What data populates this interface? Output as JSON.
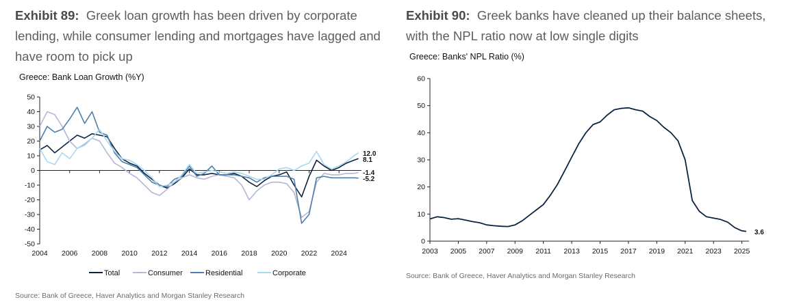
{
  "exhibit89": {
    "number": "Exhibit 89:",
    "title": "Greek loan growth has been driven by corporate lending, while consumer lending and mortgages have lagged and have room to pick up",
    "source": "Source: Bank of Greece, Haver Analytics and Morgan Stanley Research"
  },
  "exhibit90": {
    "number": "Exhibit 90:",
    "title": "Greek banks have cleaned up their balance sheets, with the NPL ratio now at low single digits",
    "source": "Source: Bank of Greece, Haver Analytics and Morgan Stanley Research"
  },
  "colors": {
    "total": "#0c2340",
    "consumer": "#b3b6d6",
    "residential": "#4f7eab",
    "corporate": "#a9d8f0",
    "npl": "#0c2340",
    "axis": "#222222"
  },
  "chart_data": [
    {
      "type": "line",
      "title": "Greece: Bank Loan Growth (%Y)",
      "xlabel": "",
      "ylabel": "",
      "xlim": [
        2004,
        2025.5
      ],
      "ylim": [
        -50,
        50
      ],
      "yticks": [
        -50,
        -40,
        -30,
        -20,
        -10,
        0,
        10,
        20,
        30,
        40,
        50
      ],
      "xticks": [
        2004,
        2006,
        2008,
        2010,
        2012,
        2014,
        2016,
        2018,
        2020,
        2022,
        2024
      ],
      "legend": "bottom",
      "grid": false,
      "series": [
        {
          "name": "Total",
          "color_key": "total",
          "end_label": "8.1",
          "x": [
            2004,
            2004.5,
            2005,
            2005.5,
            2006,
            2006.5,
            2007,
            2007.5,
            2008,
            2008.5,
            2009,
            2009.5,
            2010,
            2010.5,
            2011,
            2011.5,
            2012,
            2012.5,
            2013,
            2013.5,
            2014,
            2014.5,
            2015,
            2015.5,
            2016,
            2016.5,
            2017,
            2017.5,
            2018,
            2018.5,
            2019,
            2019.5,
            2020,
            2020.5,
            2021,
            2021.5,
            2022,
            2022.5,
            2023,
            2023.5,
            2024,
            2024.5,
            2025,
            2025.3
          ],
          "y": [
            14,
            17,
            12,
            16,
            20,
            24,
            22,
            25,
            24,
            23,
            15,
            8,
            5,
            3,
            -2,
            -6,
            -10,
            -12,
            -9,
            -5,
            1,
            -3,
            -3,
            -2,
            -3,
            -3,
            -2,
            -4,
            -8,
            -11,
            -7,
            -4,
            -3,
            -1,
            -10,
            -18,
            -4,
            7,
            3,
            0,
            2,
            5,
            7,
            8.1
          ]
        },
        {
          "name": "Consumer",
          "color_key": "consumer",
          "end_label": "-1.4",
          "x": [
            2004,
            2004.5,
            2005,
            2005.5,
            2006,
            2006.5,
            2007,
            2007.5,
            2008,
            2008.5,
            2009,
            2009.5,
            2010,
            2010.5,
            2011,
            2011.5,
            2012,
            2012.5,
            2013,
            2013.5,
            2014,
            2014.5,
            2015,
            2015.5,
            2016,
            2016.5,
            2017,
            2017.5,
            2018,
            2018.5,
            2019,
            2019.5,
            2020,
            2020.5,
            2021,
            2021.5,
            2022,
            2022.5,
            2023,
            2023.5,
            2024,
            2024.5,
            2025,
            2025.3
          ],
          "y": [
            30,
            40,
            38,
            30,
            20,
            15,
            18,
            22,
            20,
            12,
            5,
            2,
            -2,
            -5,
            -10,
            -15,
            -17,
            -13,
            -8,
            -5,
            -3,
            -5,
            -6,
            -4,
            -3,
            -4,
            -5,
            -10,
            -20,
            -14,
            -10,
            -8,
            -8,
            -9,
            -15,
            -32,
            -28,
            -8,
            -2,
            -3,
            -3,
            -2,
            -2,
            -1.4
          ]
        },
        {
          "name": "Residential",
          "color_key": "residential",
          "end_label": "-5.2",
          "x": [
            2004,
            2004.5,
            2005,
            2005.5,
            2006,
            2006.5,
            2007,
            2007.5,
            2008,
            2008.5,
            2009,
            2009.5,
            2010,
            2010.5,
            2011,
            2011.5,
            2012,
            2012.5,
            2013,
            2013.5,
            2014,
            2014.5,
            2015,
            2015.5,
            2016,
            2016.5,
            2017,
            2017.5,
            2018,
            2018.5,
            2019,
            2019.5,
            2020,
            2020.5,
            2021,
            2021.5,
            2022,
            2022.5,
            2023,
            2023.5,
            2024,
            2024.5,
            2025,
            2025.3
          ],
          "y": [
            20,
            30,
            26,
            28,
            35,
            43,
            32,
            40,
            26,
            24,
            12,
            6,
            4,
            2,
            -3,
            -8,
            -10,
            -11,
            -6,
            -4,
            3,
            -4,
            -2,
            3,
            -3,
            -3,
            -3,
            -4,
            -5,
            -8,
            -5,
            -4,
            -4,
            -4,
            -6,
            -36,
            -30,
            -5,
            -4,
            -5,
            -5,
            -5,
            -5,
            -5.2
          ]
        },
        {
          "name": "Corporate",
          "color_key": "corporate",
          "end_label": "12.0",
          "x": [
            2004,
            2004.5,
            2005,
            2005.5,
            2006,
            2006.5,
            2007,
            2007.5,
            2008,
            2008.5,
            2009,
            2009.5,
            2010,
            2010.5,
            2011,
            2011.5,
            2012,
            2012.5,
            2013,
            2013.5,
            2014,
            2014.5,
            2015,
            2015.5,
            2016,
            2016.5,
            2017,
            2017.5,
            2018,
            2018.5,
            2019,
            2019.5,
            2020,
            2020.5,
            2021,
            2021.5,
            2022,
            2022.5,
            2023,
            2023.5,
            2024,
            2024.5,
            2025,
            2025.3
          ],
          "y": [
            15,
            6,
            4,
            12,
            8,
            15,
            17,
            22,
            28,
            20,
            13,
            8,
            7,
            4,
            0,
            -5,
            -11,
            -10,
            -8,
            -3,
            4,
            -2,
            -1,
            0,
            -1,
            -2,
            -1,
            -2,
            -4,
            -6,
            -6,
            -3,
            1,
            2,
            0,
            3,
            5,
            13,
            4,
            1,
            3,
            6,
            10,
            12.0
          ]
        }
      ]
    },
    {
      "type": "line",
      "title": "Greece: Banks' NPL Ratio (%)",
      "xlabel": "",
      "ylabel": "",
      "xlim": [
        2003,
        2025.5
      ],
      "ylim": [
        0,
        60
      ],
      "yticks": [
        0,
        10,
        20,
        30,
        40,
        50,
        60
      ],
      "xticks": [
        2003,
        2005,
        2007,
        2009,
        2011,
        2013,
        2015,
        2017,
        2019,
        2021,
        2023,
        2025
      ],
      "legend": "none",
      "grid": false,
      "series": [
        {
          "name": "NPL Ratio",
          "color_key": "npl",
          "end_label": "3.6",
          "x": [
            2003,
            2003.5,
            2004,
            2004.5,
            2005,
            2005.5,
            2006,
            2006.5,
            2007,
            2007.5,
            2008,
            2008.5,
            2009,
            2009.5,
            2010,
            2010.5,
            2011,
            2011.5,
            2012,
            2012.5,
            2013,
            2013.5,
            2014,
            2014.5,
            2015,
            2015.5,
            2016,
            2016.5,
            2017,
            2017.5,
            2018,
            2018.5,
            2019,
            2019.5,
            2020,
            2020.5,
            2021,
            2021.5,
            2022,
            2022.5,
            2023,
            2023.5,
            2024,
            2024.5,
            2025,
            2025.3
          ],
          "y": [
            8.2,
            9.0,
            8.7,
            8.1,
            8.3,
            7.8,
            7.2,
            6.8,
            6.0,
            5.7,
            5.5,
            5.4,
            6.0,
            7.5,
            9.5,
            11.5,
            13.5,
            17.0,
            21.0,
            26.0,
            31.0,
            36.0,
            40.0,
            43.0,
            44.0,
            46.5,
            48.5,
            49.0,
            49.2,
            48.5,
            48.0,
            46.0,
            44.5,
            42.0,
            40.0,
            37.0,
            30.0,
            15.0,
            11.0,
            9.0,
            8.5,
            8.0,
            7.0,
            5.0,
            3.8,
            3.6
          ]
        }
      ]
    }
  ]
}
